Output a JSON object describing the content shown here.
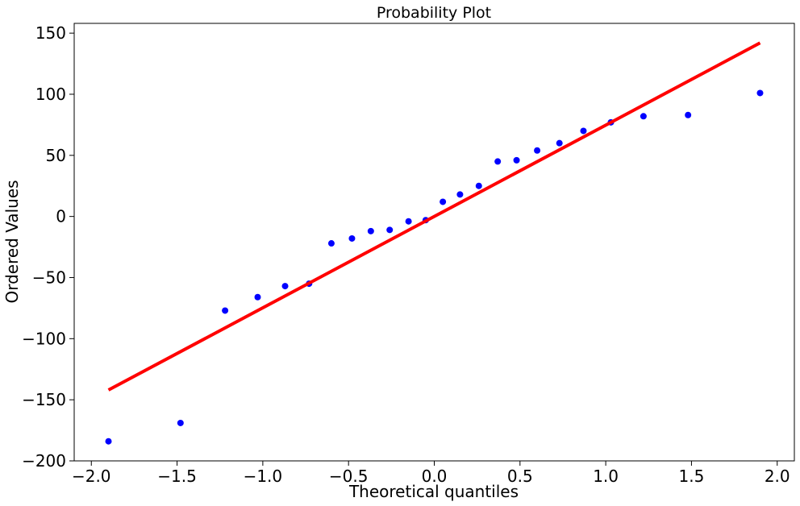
{
  "chart_data": {
    "type": "scatter",
    "title": "Probability Plot",
    "xlabel": "Theoretical quantiles",
    "ylabel": "Ordered Values",
    "xlim": [
      -2.1,
      2.1
    ],
    "ylim": [
      -200,
      158
    ],
    "xticks": [
      -2.0,
      -1.5,
      -1.0,
      -0.5,
      0.0,
      0.5,
      1.0,
      1.5,
      2.0
    ],
    "xtick_labels": [
      "−2.0",
      "−1.5",
      "−1.0",
      "−0.5",
      "0.0",
      "0.5",
      "1.0",
      "1.5",
      "2.0"
    ],
    "yticks": [
      -200,
      -150,
      -100,
      -50,
      0,
      50,
      100,
      150
    ],
    "ytick_labels": [
      "−200",
      "−150",
      "−100",
      "−50",
      "0",
      "50",
      "100",
      "150"
    ],
    "grid": false,
    "point_color": "#0000ff",
    "line_color": "#ff0000",
    "series": [
      {
        "type": "scatter",
        "x": [
          -1.9,
          -1.48,
          -1.22,
          -1.03,
          -0.87,
          -0.73,
          -0.6,
          -0.48,
          -0.37,
          -0.26,
          -0.15,
          -0.05,
          0.05,
          0.15,
          0.26,
          0.37,
          0.48,
          0.6,
          0.73,
          0.87,
          1.03,
          1.22,
          1.48,
          1.9
        ],
        "y": [
          -184,
          -169,
          -77,
          -66,
          -57,
          -55,
          -22,
          -18,
          -12,
          -11,
          -4,
          -3,
          12,
          18,
          25,
          45,
          46,
          54,
          60,
          70,
          77,
          82,
          83,
          101
        ]
      },
      {
        "type": "line",
        "x": [
          -1.9,
          1.9
        ],
        "y": [
          -142,
          142
        ]
      }
    ]
  }
}
